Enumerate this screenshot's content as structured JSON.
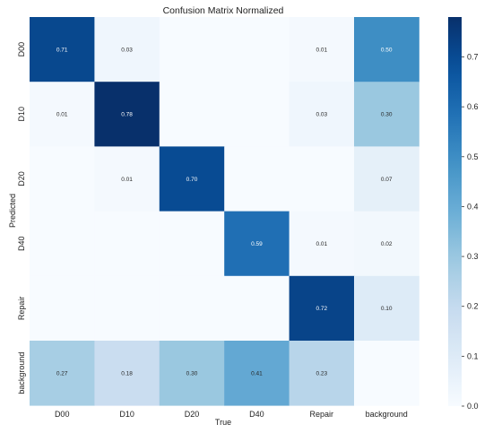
{
  "chart_data": {
    "type": "heatmap",
    "title": "Confusion Matrix Normalized",
    "xlabel": "True",
    "ylabel": "Predicted",
    "x_categories": [
      "D00",
      "D10",
      "D20",
      "D40",
      "Repair",
      "background"
    ],
    "y_categories": [
      "D00",
      "D10",
      "D20",
      "D40",
      "Repair",
      "background"
    ],
    "values": [
      [
        0.71,
        0.03,
        null,
        null,
        0.01,
        0.5
      ],
      [
        0.01,
        0.78,
        null,
        null,
        0.03,
        0.3
      ],
      [
        null,
        0.01,
        0.7,
        null,
        null,
        0.07
      ],
      [
        null,
        null,
        null,
        0.59,
        0.01,
        0.02
      ],
      [
        null,
        null,
        null,
        null,
        0.72,
        0.1
      ],
      [
        0.27,
        0.18,
        0.3,
        0.41,
        0.23,
        null
      ]
    ],
    "cell_labels": [
      [
        "0.71",
        "0.03",
        "",
        "",
        "0.01",
        "0.50"
      ],
      [
        "0.01",
        "0.78",
        "",
        "",
        "0.03",
        "0.30"
      ],
      [
        "",
        "0.01",
        "0.70",
        "",
        "",
        "0.07"
      ],
      [
        "",
        "",
        "",
        "0.59",
        "0.01",
        "0.02"
      ],
      [
        "",
        "",
        "",
        "",
        "0.72",
        "0.10"
      ],
      [
        "0.27",
        "0.18",
        "0.30",
        "0.41",
        "0.23",
        ""
      ]
    ],
    "colorbar": {
      "min": 0.0,
      "max": 0.78,
      "ticks": [
        0.0,
        0.1,
        0.2,
        0.3,
        0.4,
        0.5,
        0.6,
        0.7
      ],
      "tick_labels": [
        "0.0",
        "0.1",
        "0.2",
        "0.3",
        "0.4",
        "0.5",
        "0.6",
        "0.7"
      ],
      "colormap": "Blues",
      "color_low": "#f7fbff",
      "color_high": "#08306b"
    },
    "grid": false,
    "legend": "colorbar-right"
  }
}
